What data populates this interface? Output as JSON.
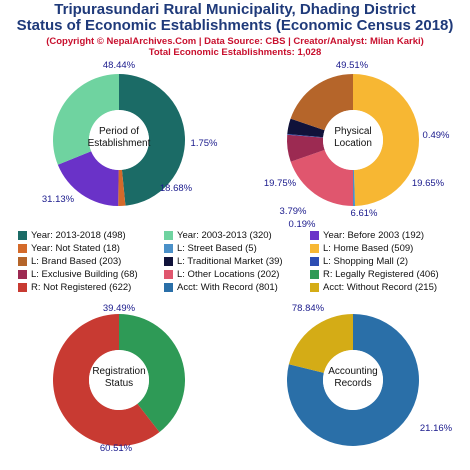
{
  "title": {
    "line1": "Tripurasundari Rural Municipality, Dhading District",
    "line2": "Status of Economic Establishments (Economic Census 2018)",
    "copyright": "(Copyright © NepalArchives.Com | Data Source: CBS | Creator/Analyst: Milan Karki)",
    "total": "Total Economic Establishments: 1,028"
  },
  "chart_data": [
    {
      "type": "pie",
      "center_label": "Period of Establishment",
      "slices": [
        {
          "label": "Year: 2013-2018 (498)",
          "value": 498,
          "percent": "48.44%",
          "color": "#1b6b66"
        },
        {
          "label": "Year: Not Stated (18)",
          "value": 18,
          "percent": "1.75%",
          "color": "#d46a2a"
        },
        {
          "label": "Year: Before 2003 (192)",
          "value": 192,
          "percent": "18.68%",
          "color": "#6a32c8"
        },
        {
          "label": "Year: 2003-2013 (320)",
          "value": 320,
          "percent": "31.13%",
          "color": "#6fd3a0"
        }
      ]
    },
    {
      "type": "pie",
      "center_label": "Physical Location",
      "slices": [
        {
          "label": "L: Home Based (509)",
          "value": 509,
          "percent": "49.51%",
          "color": "#f7b733"
        },
        {
          "label": "L: Street Based (5)",
          "value": 5,
          "percent": "0.49%",
          "color": "#4a90c8"
        },
        {
          "label": "L: Other Locations (202)",
          "value": 202,
          "percent": "19.65%",
          "color": "#e0566e"
        },
        {
          "label": "L: Exclusive Building (68)",
          "value": 68,
          "percent": "6.61%",
          "color": "#9c2a52"
        },
        {
          "label": "L: Shopping Mall (2)",
          "value": 2,
          "percent": "0.19%",
          "color": "#2d4db3"
        },
        {
          "label": "L: Traditional Market (39)",
          "value": 39,
          "percent": "3.79%",
          "color": "#10123a"
        },
        {
          "label": "L: Brand Based (203)",
          "value": 203,
          "percent": "19.75%",
          "color": "#b5652a"
        }
      ]
    },
    {
      "type": "pie",
      "center_label": "Registration Status",
      "slices": [
        {
          "label": "R: Legally Registered (406)",
          "value": 406,
          "percent": "39.49%",
          "color": "#2e9a56"
        },
        {
          "label": "R: Not Registered (622)",
          "value": 622,
          "percent": "60.51%",
          "color": "#c83a32"
        }
      ]
    },
    {
      "type": "pie",
      "center_label": "Accounting Records",
      "slices": [
        {
          "label": "Acct: With Record (801)",
          "value": 801,
          "percent": "78.84%",
          "color": "#2a6fa8"
        },
        {
          "label": "Acct: Without Record (215)",
          "value": 215,
          "percent": "21.16%",
          "color": "#d4ac16"
        }
      ]
    }
  ],
  "legend": [
    {
      "label": "Year: 2013-2018 (498)",
      "color": "#1b6b66"
    },
    {
      "label": "Year: 2003-2013 (320)",
      "color": "#6fd3a0"
    },
    {
      "label": "Year: Before 2003 (192)",
      "color": "#6a32c8"
    },
    {
      "label": "Year: Not Stated (18)",
      "color": "#d46a2a"
    },
    {
      "label": "L: Street Based (5)",
      "color": "#4a90c8"
    },
    {
      "label": "L: Home Based (509)",
      "color": "#f7b733"
    },
    {
      "label": "L: Brand Based (203)",
      "color": "#b5652a"
    },
    {
      "label": "L: Traditional Market (39)",
      "color": "#10123a"
    },
    {
      "label": "L: Shopping Mall (2)",
      "color": "#2d4db3"
    },
    {
      "label": "L: Exclusive Building (68)",
      "color": "#9c2a52"
    },
    {
      "label": "L: Other Locations (202)",
      "color": "#e0566e"
    },
    {
      "label": "R: Legally Registered (406)",
      "color": "#2e9a56"
    },
    {
      "label": "R: Not Registered (622)",
      "color": "#c83a32"
    },
    {
      "label": "Acct: With Record (801)",
      "color": "#2a6fa8"
    },
    {
      "label": "Acct: Without Record (215)",
      "color": "#d4ac16"
    }
  ],
  "colors": {
    "title": "#1f3a7a",
    "subtitle": "#c8102e",
    "percent_label": "#1a1a8c"
  }
}
